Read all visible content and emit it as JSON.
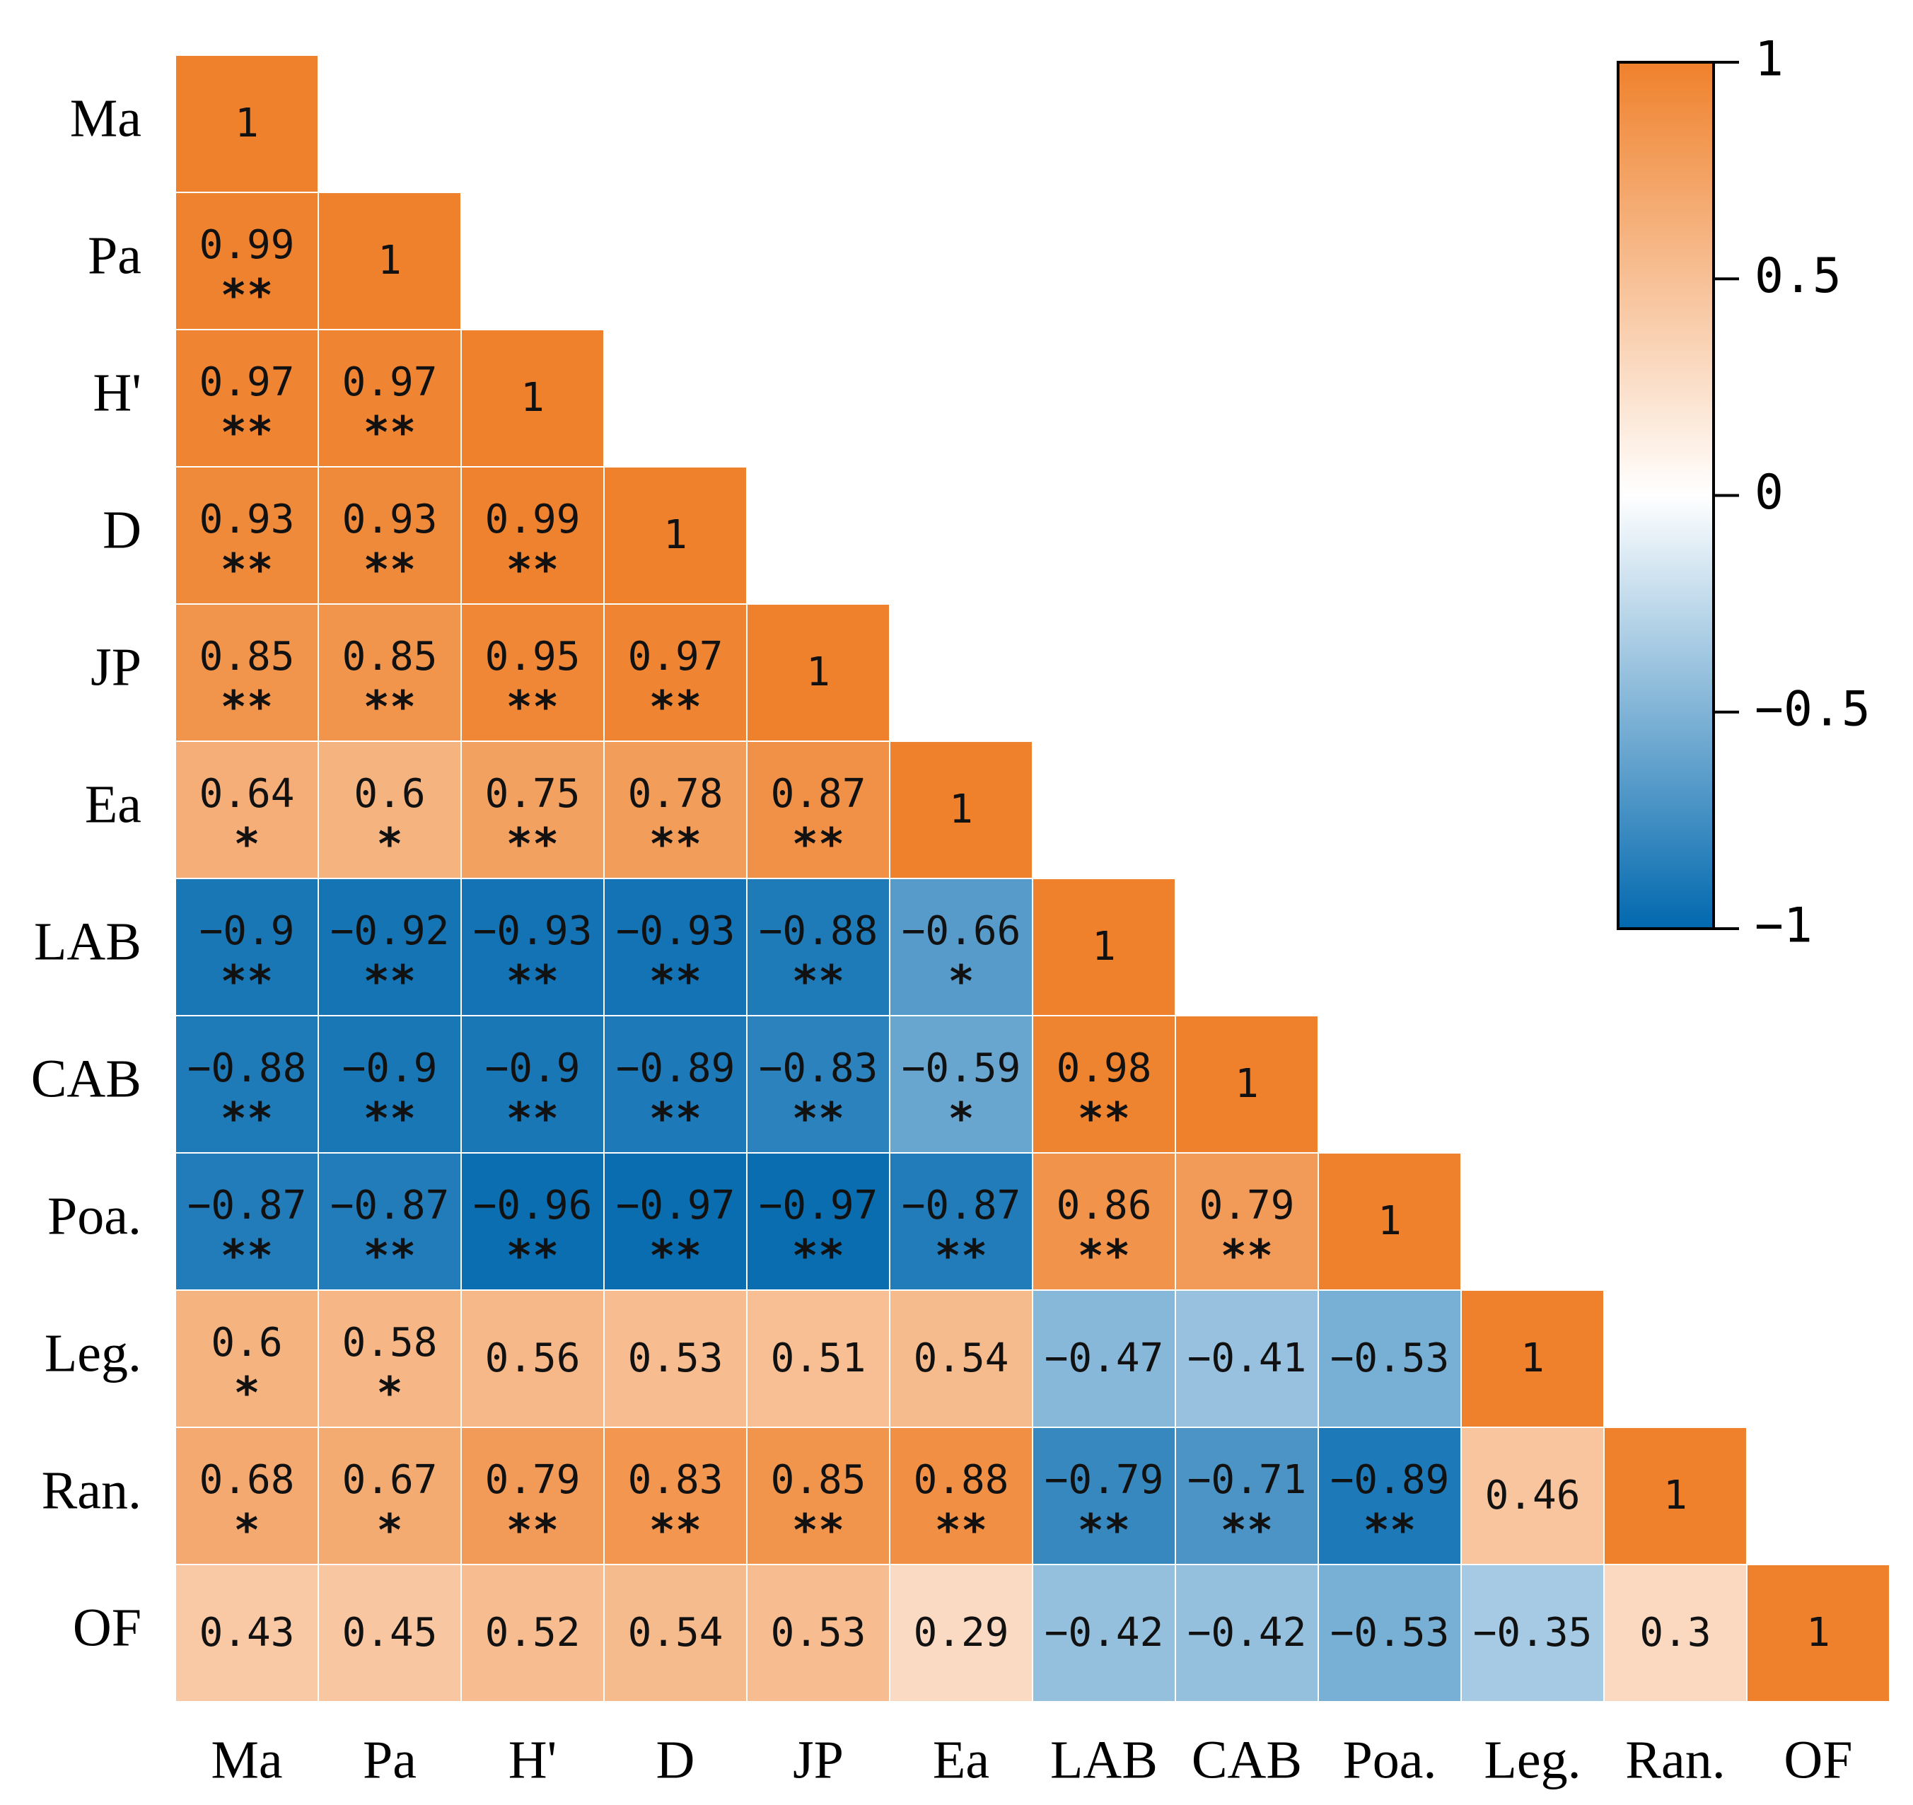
{
  "chart_data": {
    "type": "heatmap",
    "variables": [
      "Ma",
      "Pa",
      "H'",
      "D",
      "JP",
      "Ea",
      "LAB",
      "CAB",
      "Poa.",
      "Leg.",
      "Ran.",
      "OF"
    ],
    "matrix": [
      [
        1
      ],
      [
        0.99,
        1
      ],
      [
        0.97,
        0.97,
        1
      ],
      [
        0.93,
        0.93,
        0.99,
        1
      ],
      [
        0.85,
        0.85,
        0.95,
        0.97,
        1
      ],
      [
        0.64,
        0.6,
        0.75,
        0.78,
        0.87,
        1
      ],
      [
        -0.9,
        -0.92,
        -0.93,
        -0.93,
        -0.88,
        -0.66,
        1
      ],
      [
        -0.88,
        -0.9,
        -0.9,
        -0.89,
        -0.83,
        -0.59,
        0.98,
        1
      ],
      [
        -0.87,
        -0.87,
        -0.96,
        -0.97,
        -0.97,
        -0.87,
        0.86,
        0.79,
        1
      ],
      [
        0.6,
        0.58,
        0.56,
        0.53,
        0.51,
        0.54,
        -0.47,
        -0.41,
        -0.53,
        1
      ],
      [
        0.68,
        0.67,
        0.79,
        0.83,
        0.85,
        0.88,
        -0.79,
        -0.71,
        -0.89,
        0.46,
        1
      ],
      [
        0.43,
        0.45,
        0.52,
        0.54,
        0.53,
        0.29,
        -0.42,
        -0.42,
        -0.53,
        -0.35,
        0.3,
        1
      ]
    ],
    "labels": [
      [
        "1"
      ],
      [
        "0.99",
        "1"
      ],
      [
        "0.97",
        "0.97",
        "1"
      ],
      [
        "0.93",
        "0.93",
        "0.99",
        "1"
      ],
      [
        "0.85",
        "0.85",
        "0.95",
        "0.97",
        "1"
      ],
      [
        "0.64",
        "0.6",
        "0.75",
        "0.78",
        "0.87",
        "1"
      ],
      [
        "−0.9",
        "−0.92",
        "−0.93",
        "−0.93",
        "−0.88",
        "−0.66",
        "1"
      ],
      [
        "−0.88",
        "−0.9",
        "−0.9",
        "−0.89",
        "−0.83",
        "−0.59",
        "0.98",
        "1"
      ],
      [
        "−0.87",
        "−0.87",
        "−0.96",
        "−0.97",
        "−0.97",
        "−0.87",
        "0.86",
        "0.79",
        "1"
      ],
      [
        "0.6",
        "0.58",
        "0.56",
        "0.53",
        "0.51",
        "0.54",
        "−0.47",
        "−0.41",
        "−0.53",
        "1"
      ],
      [
        "0.68",
        "0.67",
        "0.79",
        "0.83",
        "0.85",
        "0.88",
        "−0.79",
        "−0.71",
        "−0.89",
        "0.46",
        "1"
      ],
      [
        "0.43",
        "0.45",
        "0.52",
        "0.54",
        "0.53",
        "0.29",
        "−0.42",
        "−0.42",
        "−0.53",
        "−0.35",
        "0.3",
        "1"
      ]
    ],
    "significance": [
      [
        ""
      ],
      [
        "**",
        ""
      ],
      [
        "**",
        "**",
        ""
      ],
      [
        "**",
        "**",
        "**",
        ""
      ],
      [
        "**",
        "**",
        "**",
        "**",
        ""
      ],
      [
        "*",
        "*",
        "**",
        "**",
        "**",
        ""
      ],
      [
        "**",
        "**",
        "**",
        "**",
        "**",
        "*",
        ""
      ],
      [
        "**",
        "**",
        "**",
        "**",
        "**",
        "*",
        "**",
        ""
      ],
      [
        "**",
        "**",
        "**",
        "**",
        "**",
        "**",
        "**",
        "**",
        ""
      ],
      [
        "*",
        "*",
        "",
        "",
        "",
        "",
        "",
        "",
        "",
        ""
      ],
      [
        "*",
        "*",
        "**",
        "**",
        "**",
        "**",
        "**",
        "**",
        "**",
        "",
        ""
      ],
      [
        "",
        "",
        "",
        "",
        "",
        "",
        "",
        "",
        "",
        "",
        "",
        ""
      ]
    ],
    "colorbar": {
      "range": [
        -1,
        1
      ],
      "tick_labels": [
        "1",
        "0.5",
        "0",
        "−0.5",
        "−1"
      ],
      "tick_values": [
        1,
        0.5,
        0,
        -0.5,
        -1
      ],
      "colors": {
        "positive": "#EF812C",
        "neutral": "#FFFFFF",
        "negative": "#0168AE"
      }
    }
  }
}
